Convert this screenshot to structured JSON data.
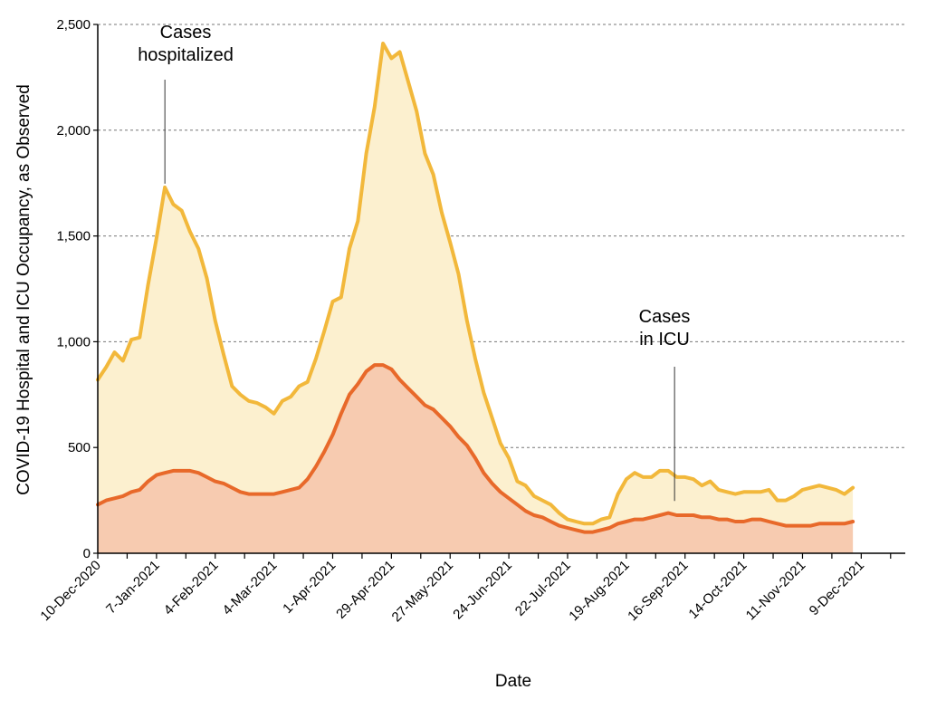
{
  "chart_data": {
    "type": "area",
    "title": "",
    "xlabel": "Date",
    "ylabel": "COVID-19 Hospital and ICU Occupancy, as Observed",
    "ylim": [
      0,
      2500
    ],
    "yticks": [
      0,
      500,
      1000,
      1500,
      2000,
      2500
    ],
    "ytick_labels": [
      "0",
      "500",
      "1,000",
      "1,500",
      "2,000",
      "2,500"
    ],
    "xlim": [
      "2020-12-10",
      "2021-12-30"
    ],
    "xticks": [
      "2020-12-10",
      "2021-01-07",
      "2021-02-04",
      "2021-03-04",
      "2021-04-01",
      "2021-04-29",
      "2021-05-27",
      "2021-06-24",
      "2021-07-22",
      "2021-08-19",
      "2021-09-16",
      "2021-10-14",
      "2021-11-11",
      "2021-12-09"
    ],
    "xtick_labels": [
      "10-Dec-2020",
      "7-Jan-2021",
      "4-Feb-2021",
      "4-Mar-2021",
      "1-Apr-2021",
      "29-Apr-2021",
      "27-May-2021",
      "24-Jun-2021",
      "22-Jul-2021",
      "19-Aug-2021",
      "16-Sep-2021",
      "14-Oct-2021",
      "11-Nov-2021",
      "9-Dec-2021"
    ],
    "grid": "horizontal-dashed",
    "annotations": [
      {
        "text": [
          "Cases",
          "hospitalized"
        ],
        "target_date": "2021-01-11",
        "target_series": "hospitalized"
      },
      {
        "text": [
          "Cases",
          "in ICU"
        ],
        "target_date": "2021-09-11",
        "target_series": "icu"
      }
    ],
    "colors": {
      "hospitalized_line": "#f2b83b",
      "hospitalized_fill": "#fcf0cf",
      "icu_line": "#e8692a",
      "icu_fill": "#f7cbb0",
      "grid": "#777777"
    },
    "series": [
      {
        "id": "hospitalized",
        "x": [
          "2020-12-10",
          "2020-12-14",
          "2020-12-18",
          "2020-12-22",
          "2020-12-26",
          "2020-12-30",
          "2021-01-03",
          "2021-01-07",
          "2021-01-11",
          "2021-01-15",
          "2021-01-19",
          "2021-01-23",
          "2021-01-27",
          "2021-01-31",
          "2021-02-04",
          "2021-02-08",
          "2021-02-12",
          "2021-02-16",
          "2021-02-20",
          "2021-02-24",
          "2021-02-28",
          "2021-03-04",
          "2021-03-08",
          "2021-03-12",
          "2021-03-16",
          "2021-03-20",
          "2021-03-24",
          "2021-03-28",
          "2021-04-01",
          "2021-04-05",
          "2021-04-09",
          "2021-04-13",
          "2021-04-17",
          "2021-04-21",
          "2021-04-25",
          "2021-04-29",
          "2021-05-03",
          "2021-05-07",
          "2021-05-11",
          "2021-05-15",
          "2021-05-19",
          "2021-05-23",
          "2021-05-27",
          "2021-05-31",
          "2021-06-04",
          "2021-06-08",
          "2021-06-12",
          "2021-06-16",
          "2021-06-20",
          "2021-06-24",
          "2021-06-28",
          "2021-07-02",
          "2021-07-06",
          "2021-07-10",
          "2021-07-14",
          "2021-07-18",
          "2021-07-22",
          "2021-07-26",
          "2021-07-30",
          "2021-08-03",
          "2021-08-07",
          "2021-08-11",
          "2021-08-15",
          "2021-08-19",
          "2021-08-23",
          "2021-08-27",
          "2021-08-31",
          "2021-09-04",
          "2021-09-08",
          "2021-09-12",
          "2021-09-16",
          "2021-09-20",
          "2021-09-24",
          "2021-09-28",
          "2021-10-02",
          "2021-10-06",
          "2021-10-10",
          "2021-10-14",
          "2021-10-18",
          "2021-10-22",
          "2021-10-26",
          "2021-10-30",
          "2021-11-03",
          "2021-11-07",
          "2021-11-11",
          "2021-11-15",
          "2021-11-19",
          "2021-11-23",
          "2021-11-27",
          "2021-12-01",
          "2021-12-05"
        ],
        "values": [
          820,
          880,
          950,
          910,
          1010,
          1020,
          1270,
          1490,
          1730,
          1650,
          1620,
          1520,
          1440,
          1300,
          1100,
          940,
          790,
          750,
          720,
          710,
          690,
          660,
          720,
          740,
          790,
          810,
          920,
          1050,
          1190,
          1210,
          1440,
          1570,
          1890,
          2110,
          2410,
          2340,
          2370,
          2230,
          2090,
          1890,
          1790,
          1610,
          1470,
          1320,
          1100,
          920,
          760,
          640,
          520,
          450,
          340,
          320,
          270,
          250,
          230,
          190,
          160,
          150,
          140,
          140,
          160,
          170,
          280,
          350,
          380,
          360,
          360,
          390,
          390,
          360,
          360,
          350,
          320,
          340,
          300,
          290,
          280,
          290,
          290,
          290,
          300,
          250,
          250,
          270,
          300,
          310,
          320,
          310,
          300,
          280,
          310
        ]
      },
      {
        "id": "icu",
        "x": [
          "2020-12-10",
          "2020-12-14",
          "2020-12-18",
          "2020-12-22",
          "2020-12-26",
          "2020-12-30",
          "2021-01-03",
          "2021-01-07",
          "2021-01-11",
          "2021-01-15",
          "2021-01-19",
          "2021-01-23",
          "2021-01-27",
          "2021-01-31",
          "2021-02-04",
          "2021-02-08",
          "2021-02-12",
          "2021-02-16",
          "2021-02-20",
          "2021-02-24",
          "2021-02-28",
          "2021-03-04",
          "2021-03-08",
          "2021-03-12",
          "2021-03-16",
          "2021-03-20",
          "2021-03-24",
          "2021-03-28",
          "2021-04-01",
          "2021-04-05",
          "2021-04-09",
          "2021-04-13",
          "2021-04-17",
          "2021-04-21",
          "2021-04-25",
          "2021-04-29",
          "2021-05-03",
          "2021-05-07",
          "2021-05-11",
          "2021-05-15",
          "2021-05-19",
          "2021-05-23",
          "2021-05-27",
          "2021-05-31",
          "2021-06-04",
          "2021-06-08",
          "2021-06-12",
          "2021-06-16",
          "2021-06-20",
          "2021-06-24",
          "2021-06-28",
          "2021-07-02",
          "2021-07-06",
          "2021-07-10",
          "2021-07-14",
          "2021-07-18",
          "2021-07-22",
          "2021-07-26",
          "2021-07-30",
          "2021-08-03",
          "2021-08-07",
          "2021-08-11",
          "2021-08-15",
          "2021-08-19",
          "2021-08-23",
          "2021-08-27",
          "2021-08-31",
          "2021-09-04",
          "2021-09-08",
          "2021-09-12",
          "2021-09-16",
          "2021-09-20",
          "2021-09-24",
          "2021-09-28",
          "2021-10-02",
          "2021-10-06",
          "2021-10-10",
          "2021-10-14",
          "2021-10-18",
          "2021-10-22",
          "2021-10-26",
          "2021-10-30",
          "2021-11-03",
          "2021-11-07",
          "2021-11-11",
          "2021-11-15",
          "2021-11-19",
          "2021-11-23",
          "2021-11-27",
          "2021-12-01",
          "2021-12-05"
        ],
        "values": [
          230,
          250,
          260,
          270,
          290,
          300,
          340,
          370,
          380,
          390,
          390,
          390,
          380,
          360,
          340,
          330,
          310,
          290,
          280,
          280,
          280,
          280,
          290,
          300,
          310,
          350,
          410,
          480,
          560,
          660,
          750,
          800,
          860,
          890,
          890,
          870,
          820,
          780,
          740,
          700,
          680,
          640,
          600,
          550,
          510,
          450,
          380,
          330,
          290,
          260,
          230,
          200,
          180,
          170,
          150,
          130,
          120,
          110,
          100,
          100,
          110,
          120,
          140,
          150,
          160,
          160,
          170,
          180,
          190,
          180,
          180,
          180,
          170,
          170,
          160,
          160,
          150,
          150,
          160,
          160,
          150,
          140,
          130,
          130,
          130,
          130,
          140,
          140,
          140,
          140,
          150
        ]
      }
    ]
  }
}
